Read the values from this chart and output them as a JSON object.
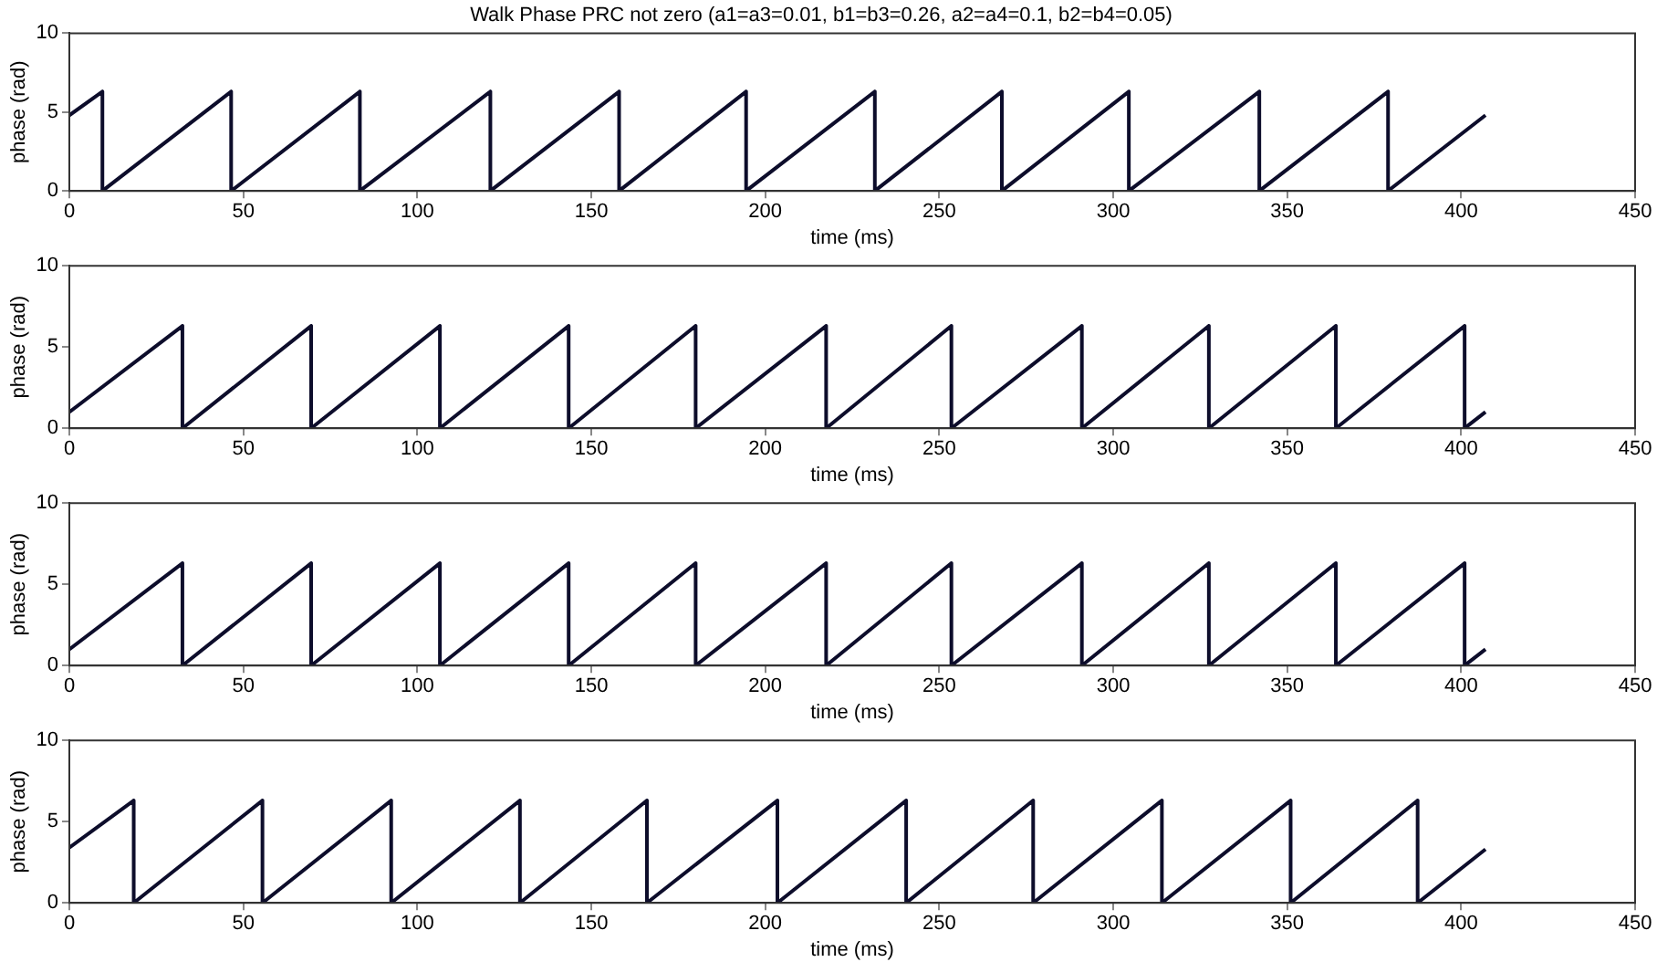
{
  "chart_data": [
    {
      "type": "line",
      "title": "Walk Phase PRC not zero (a1=a3=0.01, b1=b3=0.26, a2=a4=0.1, b2=b4=0.05)",
      "xlabel": "time (ms)",
      "ylabel": "phase (rad)",
      "xlim": [
        0,
        450
      ],
      "xticks": [
        0,
        50,
        100,
        150,
        200,
        250,
        300,
        350,
        400,
        450
      ],
      "ylim": [
        0,
        10
      ],
      "yticks": [
        0,
        5,
        10
      ],
      "grid": false,
      "legend": false,
      "marker": "none",
      "series": [
        {
          "color": "#0d0d2b",
          "x": [
            0,
            9.5,
            9.5,
            46.5,
            46.5,
            83.5,
            83.5,
            121,
            121,
            158,
            158,
            194.5,
            194.5,
            231.5,
            231.5,
            268,
            268,
            304.5,
            304.5,
            342,
            342,
            379,
            379,
            407
          ],
          "values": [
            4.8,
            6.3,
            0,
            6.3,
            0,
            6.3,
            0,
            6.3,
            0,
            6.3,
            0,
            6.3,
            0,
            6.3,
            0,
            6.3,
            0,
            6.3,
            0,
            6.3,
            0,
            6.3,
            0,
            4.8
          ]
        }
      ]
    },
    {
      "type": "line",
      "xlabel": "time (ms)",
      "ylabel": "phase (rad)",
      "xlim": [
        0,
        450
      ],
      "xticks": [
        0,
        50,
        100,
        150,
        200,
        250,
        300,
        350,
        400,
        450
      ],
      "ylim": [
        0,
        10
      ],
      "yticks": [
        0,
        5,
        10
      ],
      "grid": false,
      "legend": false,
      "marker": "none",
      "series": [
        {
          "color": "#0d0d2b",
          "x": [
            0,
            32.5,
            32.5,
            69.5,
            69.5,
            106.5,
            106.5,
            143.5,
            143.5,
            180,
            180,
            217.5,
            217.5,
            253.5,
            253.5,
            291,
            291,
            327.5,
            327.5,
            364,
            364,
            401,
            401,
            407
          ],
          "values": [
            1.0,
            6.3,
            0,
            6.3,
            0,
            6.3,
            0,
            6.3,
            0,
            6.3,
            0,
            6.3,
            0,
            6.3,
            0,
            6.3,
            0,
            6.3,
            0,
            6.3,
            0,
            6.3,
            0,
            1.0
          ]
        }
      ]
    },
    {
      "type": "line",
      "xlabel": "time (ms)",
      "ylabel": "phase (rad)",
      "xlim": [
        0,
        450
      ],
      "xticks": [
        0,
        50,
        100,
        150,
        200,
        250,
        300,
        350,
        400,
        450
      ],
      "ylim": [
        0,
        10
      ],
      "yticks": [
        0,
        5,
        10
      ],
      "grid": false,
      "legend": false,
      "marker": "none",
      "series": [
        {
          "color": "#0d0d2b",
          "x": [
            0,
            32.5,
            32.5,
            69.5,
            69.5,
            106.5,
            106.5,
            143.5,
            143.5,
            180,
            180,
            217.5,
            217.5,
            253.5,
            253.5,
            291,
            291,
            327.5,
            327.5,
            364,
            364,
            401,
            401,
            407
          ],
          "values": [
            1.0,
            6.3,
            0,
            6.3,
            0,
            6.3,
            0,
            6.3,
            0,
            6.3,
            0,
            6.3,
            0,
            6.3,
            0,
            6.3,
            0,
            6.3,
            0,
            6.3,
            0,
            6.3,
            0,
            1.0
          ]
        }
      ]
    },
    {
      "type": "line",
      "xlabel": "time (ms)",
      "ylabel": "phase (rad)",
      "xlim": [
        0,
        450
      ],
      "xticks": [
        0,
        50,
        100,
        150,
        200,
        250,
        300,
        350,
        400,
        450
      ],
      "ylim": [
        0,
        10
      ],
      "yticks": [
        0,
        5,
        10
      ],
      "grid": false,
      "legend": false,
      "marker": "none",
      "series": [
        {
          "color": "#0d0d2b",
          "x": [
            0,
            18.5,
            18.5,
            55.5,
            55.5,
            92.5,
            92.5,
            129.5,
            129.5,
            166,
            166,
            203.5,
            203.5,
            240.5,
            240.5,
            277,
            277,
            314,
            314,
            351,
            351,
            387.5,
            387.5,
            407
          ],
          "values": [
            3.4,
            6.3,
            0,
            6.3,
            0,
            6.3,
            0,
            6.3,
            0,
            6.3,
            0,
            6.3,
            0,
            6.3,
            0,
            6.3,
            0,
            6.3,
            0,
            6.3,
            0,
            6.3,
            0,
            3.3
          ]
        }
      ]
    }
  ]
}
